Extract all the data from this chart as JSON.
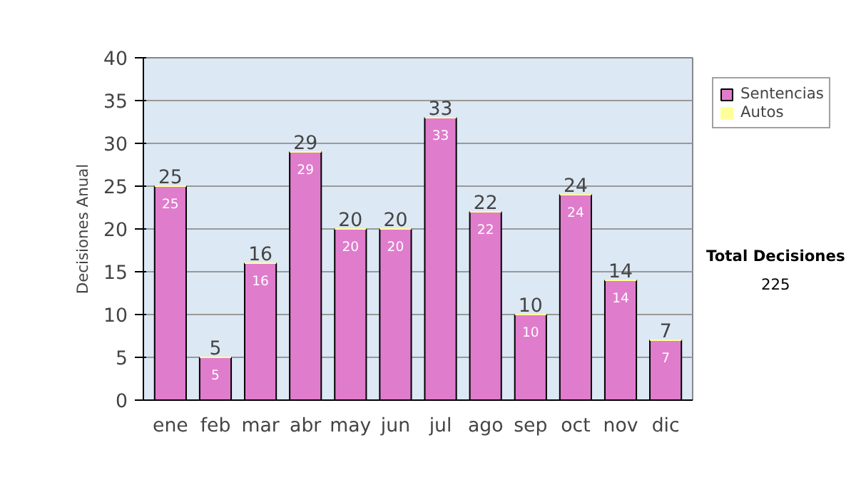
{
  "chart_data": {
    "type": "bar",
    "stacked": true,
    "ylabel": "Decisiones Anual",
    "categories": [
      "ene",
      "feb",
      "mar",
      "abr",
      "may",
      "jun",
      "jul",
      "ago",
      "sep",
      "oct",
      "nov",
      "dic"
    ],
    "series": [
      {
        "name": "Sentencias",
        "color": "#e07ccc",
        "values": [
          25,
          5,
          16,
          29,
          20,
          20,
          33,
          22,
          10,
          24,
          14,
          7
        ],
        "value_labels": [
          "25",
          "5",
          "16",
          "29",
          "20",
          "20",
          "33",
          "22",
          "10",
          "24",
          "14",
          "7"
        ]
      },
      {
        "name": "Autos",
        "color": "#ffff99",
        "values": [
          0,
          0,
          0,
          0,
          0,
          0,
          0,
          0,
          0,
          0,
          0,
          0
        ]
      }
    ],
    "totals": [
      "25",
      "5",
      "16",
      "29",
      "20",
      "20",
      "33",
      "22",
      "10",
      "24",
      "14",
      "7"
    ],
    "ylim": [
      0,
      40
    ],
    "yticks": [
      0,
      5,
      10,
      15,
      20,
      25,
      30,
      35,
      40
    ],
    "grid": "y",
    "legend": "right",
    "annotations": [
      "Total Decisiones",
      "225"
    ]
  }
}
